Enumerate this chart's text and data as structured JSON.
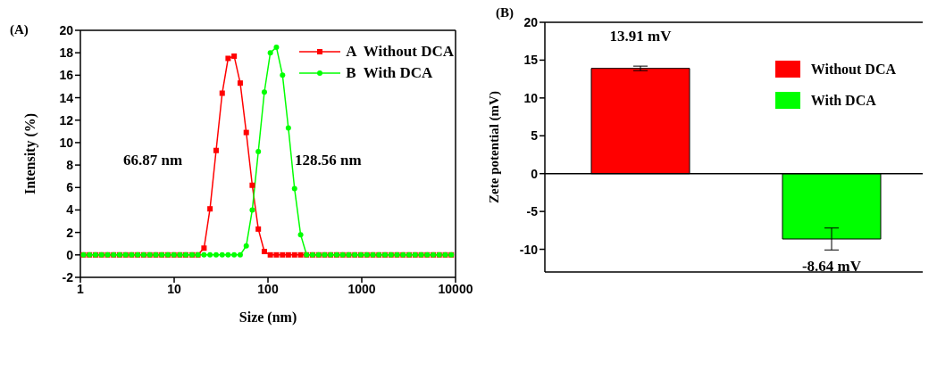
{
  "chart_data": [
    {
      "type": "line",
      "title": "(A)",
      "xlabel": "Size (nm)",
      "ylabel": "Intensity (%)",
      "log": "x",
      "x": [
        1.08,
        1.25,
        1.45,
        1.68,
        1.95,
        2.26,
        2.62,
        3.04,
        3.52,
        4.08,
        4.73,
        5.49,
        6.37,
        7.38,
        8.56,
        9.93,
        11.5,
        13.3,
        15.5,
        17.9,
        20.8,
        24.1,
        28.0,
        32.5,
        37.6,
        43.6,
        50.6,
        58.7,
        68.0,
        78.9,
        91.5,
        106,
        123,
        143,
        165,
        192,
        223,
        258,
        299,
        347,
        402,
        466,
        541,
        627,
        727,
        843,
        978,
        1134,
        1315,
        1525,
        1769,
        2051,
        2378,
        2757,
        3197,
        3707,
        4299,
        4985,
        5780,
        6702,
        7772,
        9012
      ],
      "series": [
        {
          "name": "A  Without DCA",
          "color": "#ff0000",
          "marker": "square",
          "values": [
            0,
            0,
            0,
            0,
            0,
            0,
            0,
            0,
            0,
            0,
            0,
            0,
            0,
            0,
            0,
            0,
            0,
            0,
            0,
            0,
            0.6,
            4.1,
            9.3,
            14.4,
            17.5,
            17.7,
            15.3,
            10.9,
            6.2,
            2.3,
            0.3,
            0,
            0,
            0,
            0,
            0,
            0,
            0,
            0,
            0,
            0,
            0,
            0,
            0,
            0,
            0,
            0,
            0,
            0,
            0,
            0,
            0,
            0,
            0,
            0,
            0,
            0,
            0,
            0,
            0,
            0,
            0
          ]
        },
        {
          "name": "B  With DCA",
          "color": "#00ff00",
          "marker": "circle",
          "values": [
            0,
            0,
            0,
            0,
            0,
            0,
            0,
            0,
            0,
            0,
            0,
            0,
            0,
            0,
            0,
            0,
            0,
            0,
            0,
            0,
            0,
            0,
            0,
            0,
            0,
            0,
            0,
            0.8,
            4.0,
            9.2,
            14.5,
            18.0,
            18.5,
            16.0,
            11.3,
            5.9,
            1.8,
            0,
            0,
            0,
            0,
            0,
            0,
            0,
            0,
            0,
            0,
            0,
            0,
            0,
            0,
            0,
            0,
            0,
            0,
            0,
            0,
            0,
            0,
            0,
            0,
            0
          ]
        }
      ],
      "xlim": [
        1,
        10000
      ],
      "xticks": [
        1,
        10,
        100,
        1000,
        10000
      ],
      "ylim": [
        -2,
        20
      ],
      "yticks": [
        -2,
        0,
        2,
        4,
        6,
        8,
        10,
        12,
        14,
        16,
        18,
        20
      ],
      "annotations": [
        "66.87 nm",
        "128.56 nm"
      ],
      "legend": "top right",
      "grid": false,
      "line_style": "solid"
    },
    {
      "type": "bar",
      "title": "(B)",
      "ylabel": "Zete potential (mV)",
      "categories": [
        null,
        null
      ],
      "stacked": true,
      "series": [
        {
          "name": "Without DCA",
          "color": "#ff0000",
          "values": [
            13.91,
            null
          ],
          "errors": [
            0.3,
            null
          ],
          "value_labels": [
            "13.91 mV",
            null
          ]
        },
        {
          "name": "With DCA",
          "color": "#00ff00",
          "values": [
            null,
            -8.64
          ],
          "errors": [
            null,
            1.45
          ],
          "value_labels": [
            null,
            "-8.64 mV"
          ]
        }
      ],
      "ylim": [
        -13,
        20
      ],
      "yticks": [
        -10,
        -5,
        0,
        5,
        10,
        15,
        20
      ],
      "ref_lines": [
        {
          "axis": "y",
          "value": 0
        }
      ],
      "legend": "top right",
      "grid": false
    }
  ]
}
